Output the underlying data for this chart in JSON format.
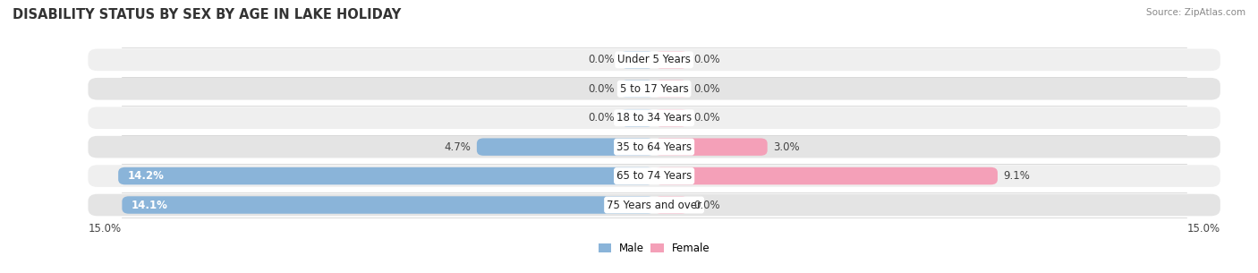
{
  "title": "DISABILITY STATUS BY SEX BY AGE IN LAKE HOLIDAY",
  "source": "Source: ZipAtlas.com",
  "categories": [
    "Under 5 Years",
    "5 to 17 Years",
    "18 to 34 Years",
    "35 to 64 Years",
    "65 to 74 Years",
    "75 Years and over"
  ],
  "male_values": [
    0.0,
    0.0,
    0.0,
    4.7,
    14.2,
    14.1
  ],
  "female_values": [
    0.0,
    0.0,
    0.0,
    3.0,
    9.1,
    0.0
  ],
  "male_color": "#8ab4d9",
  "female_color": "#f4a0b8",
  "male_dark_color": "#6699bb",
  "female_dark_color": "#e07090",
  "row_bg_odd": "#efefef",
  "row_bg_even": "#e4e4e4",
  "xlim": 15.0,
  "title_fontsize": 10.5,
  "label_fontsize": 8.5,
  "value_fontsize": 8.5,
  "bar_height": 0.6,
  "min_bar": 0.9,
  "background_color": "#ffffff"
}
